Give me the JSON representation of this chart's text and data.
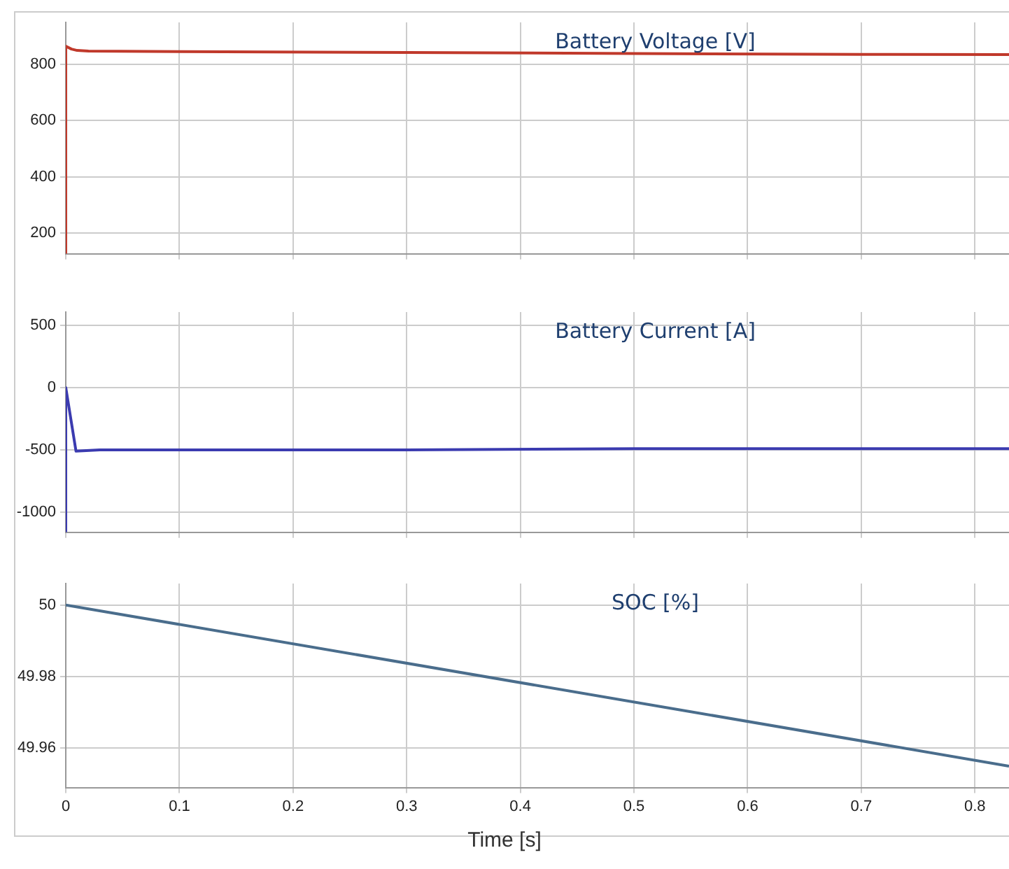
{
  "chart_data": [
    {
      "type": "line",
      "title": "Battery Voltage [V]",
      "x": [
        0,
        0,
        0.005,
        0.01,
        0.02,
        0.1,
        0.3,
        0.5,
        0.7,
        0.83
      ],
      "series": [
        {
          "color": "#c0392b",
          "values": [
            125,
            865,
            855,
            850,
            848,
            846,
            843,
            839,
            836,
            835
          ]
        }
      ],
      "xlim": [
        0,
        0.83
      ],
      "xticks": [
        0,
        0.1,
        0.2,
        0.3,
        0.4,
        0.5,
        0.6,
        0.7,
        0.8
      ],
      "ylim": [
        125,
        950
      ],
      "yticks": [
        200,
        400,
        600,
        800
      ],
      "grid": true,
      "legend": false,
      "tick_labels": "y",
      "marker": "none",
      "line_style": "solid"
    },
    {
      "type": "line",
      "title": "Battery Current [A]",
      "x": [
        0,
        0,
        0.009,
        0.03,
        0.1,
        0.3,
        0.5,
        0.83
      ],
      "series": [
        {
          "color": "#3b3bb0",
          "values": [
            -1160,
            0,
            -510,
            -500,
            -500,
            -500,
            -490,
            -490
          ]
        }
      ],
      "xlim": [
        0,
        0.83
      ],
      "xticks": [
        0,
        0.1,
        0.2,
        0.3,
        0.4,
        0.5,
        0.6,
        0.7,
        0.8
      ],
      "ylim": [
        -1160,
        605
      ],
      "yticks": [
        -1000,
        -500,
        0,
        500
      ],
      "grid": true,
      "legend": false,
      "tick_labels": "y",
      "marker": "none",
      "line_style": "solid"
    },
    {
      "type": "line",
      "title": "SOC [%]",
      "xlabel": "Time [s]",
      "x": [
        0,
        0.83
      ],
      "series": [
        {
          "color": "#4a6d8c",
          "values": [
            50,
            49.955
          ]
        }
      ],
      "xlim": [
        0,
        0.83
      ],
      "xticks": [
        0,
        0.1,
        0.2,
        0.3,
        0.4,
        0.5,
        0.6,
        0.7,
        0.8
      ],
      "ylim": [
        49.949,
        50.006
      ],
      "yticks": [
        49.96,
        49.98,
        50
      ],
      "grid": true,
      "legend": false,
      "marker": "none",
      "line_style": "solid"
    }
  ]
}
